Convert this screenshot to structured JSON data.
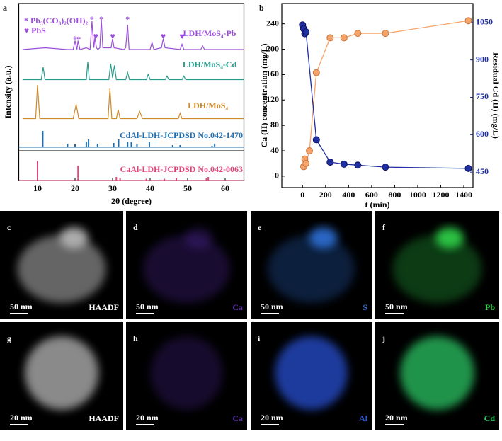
{
  "chart_data": [
    {
      "type": "xrd",
      "panel": "a",
      "x_label": "2θ (degree)",
      "y_label": "Intensity (a.u.)",
      "xlim": [
        5,
        65
      ],
      "xticks": [
        10,
        20,
        30,
        40,
        50,
        60
      ],
      "ylim": [
        0,
        100
      ],
      "series": [
        {
          "name": "LDH/MoS₄-Pb",
          "color": "#9b4fd8",
          "style": "line",
          "x": [
            6,
            12,
            18,
            19.5,
            20,
            20.5,
            20.8,
            21.3,
            23,
            24,
            24.5,
            25,
            25.3,
            25.7,
            26.1,
            26.6,
            27,
            27.4,
            29,
            29.6,
            30,
            30.4,
            33,
            33.5,
            34,
            34.4,
            38,
            40,
            40.5,
            41,
            43,
            43.5,
            44,
            48,
            48.5,
            49,
            53.5,
            54,
            54.5,
            60,
            65
          ],
          "values": [
            74,
            75,
            74,
            74,
            79,
            74,
            79,
            74,
            75,
            74,
            90,
            75,
            81,
            75,
            74,
            75,
            91,
            75,
            75,
            75,
            80,
            75,
            74,
            75,
            88,
            74,
            74,
            74,
            78,
            74,
            75,
            80,
            75,
            74,
            77,
            74,
            74,
            76,
            74,
            74,
            74
          ]
        },
        {
          "name": "LDH/MoS₄-Cd",
          "color": "#2a9a8a",
          "style": "line",
          "x": [
            6,
            11,
            11.5,
            12,
            18,
            23,
            23.4,
            23.8,
            29,
            29.5,
            30,
            30.5,
            31,
            33.5,
            34,
            34.5,
            39,
            39.5,
            40,
            44,
            44.5,
            45,
            48.5,
            49,
            49.5,
            60,
            65
          ],
          "values": [
            57,
            57,
            64,
            57,
            57,
            57,
            67,
            57,
            57,
            66,
            58,
            65,
            57,
            57,
            61,
            57,
            57,
            60,
            57,
            57,
            59,
            57,
            57,
            59,
            57,
            57,
            57
          ]
        },
        {
          "name": "LDH/MoS₄",
          "color": "#d08a2a",
          "style": "line",
          "x": [
            6,
            9.5,
            10,
            10.6,
            19.5,
            20.3,
            21,
            28.8,
            29.3,
            29.8,
            31,
            31.5,
            32,
            36.5,
            37.2,
            38,
            47.5,
            48,
            48.5,
            60,
            65
          ],
          "values": [
            35,
            35,
            54,
            35,
            35,
            43,
            35,
            35,
            52,
            35,
            35,
            40,
            35,
            35,
            39,
            35,
            35,
            38,
            35,
            35,
            35
          ]
        },
        {
          "name": "CdAl-LDH-JCPDSD No.042-1470",
          "color": "#1f6fb0",
          "style": "stick",
          "x": [
            11.4,
            18,
            20,
            23,
            23.6,
            26,
            30.3,
            31.6,
            34,
            35,
            36.5,
            39.8,
            46,
            48,
            56.5,
            57.2
          ],
          "values": [
            28,
            20.8,
            20.4,
            22,
            23.2,
            20.8,
            21.2,
            23.2,
            22,
            21.6,
            20.4,
            21.6,
            20,
            20,
            19.6,
            20.8
          ]
        },
        {
          "name": "CaAl-LDH-JCPDSD No.042-0063",
          "color": "#e0457b",
          "style": "stick",
          "x": [
            10,
            20.8,
            31,
            32,
            39,
            43.8,
            47,
            55,
            55.5
          ],
          "values": [
            11,
            8.4,
            2,
            1.4,
            1,
            1,
            1.2,
            1.2,
            2
          ]
        }
      ],
      "annotations": {
        "color": "#9b4fd8",
        "legend": [
          "* Pb₃(CO₃)₂(OH)₂",
          "♥ PbS"
        ],
        "symbols": [
          "*",
          "*",
          "*",
          "*",
          "*",
          "♥",
          "♥",
          "♥",
          "♥"
        ],
        "x": [
          20,
          21,
          24.5,
          27,
          34,
          25.5,
          30,
          43.5,
          48.5
        ]
      }
    },
    {
      "type": "line",
      "panel": "b",
      "x_label": "t (min)",
      "y_label": "Ca (II) concentration (mg/L)",
      "y2_label": "Residual Cd (II) (mg/L)",
      "xlim": [
        -180,
        1480
      ],
      "xticks": [
        0,
        200,
        400,
        600,
        800,
        1000,
        1200,
        1400
      ],
      "ylim": [
        -18,
        272
      ],
      "yticks": [
        0,
        40,
        80,
        120,
        160,
        200,
        240
      ],
      "y2lim": [
        388,
        1126
      ],
      "y2ticks": [
        450,
        600,
        750,
        900,
        1050
      ],
      "series": [
        {
          "name": "Ca (II)",
          "color": "#f4a46a",
          "x": [
            10,
            20,
            30,
            60,
            120,
            240,
            360,
            480,
            720,
            1440
          ],
          "values": [
            15,
            27,
            20,
            40,
            163,
            218,
            218,
            225,
            225,
            245
          ]
        },
        {
          "name": "Cd (II)",
          "color": "#1f2fa0",
          "axis": "y2",
          "x": [
            0,
            10,
            20,
            30,
            120,
            240,
            360,
            480,
            720,
            1440
          ],
          "values": [
            1040,
            1025,
            1005,
            1012,
            580,
            490,
            482,
            478,
            470,
            465
          ]
        }
      ]
    }
  ],
  "images": [
    {
      "letter": "c",
      "scale_bar": "50 nm",
      "label": "HAADF",
      "color": "#ffffff"
    },
    {
      "letter": "d",
      "scale_bar": "50 nm",
      "label": "Ca",
      "color": "#5a2db0"
    },
    {
      "letter": "e",
      "scale_bar": "50 nm",
      "label": "S",
      "color": "#2e6fd6"
    },
    {
      "letter": "f",
      "scale_bar": "50 nm",
      "label": "Pb",
      "color": "#2fd24a"
    },
    {
      "letter": "g",
      "scale_bar": "20 nm",
      "label": "HAADF",
      "color": "#ffffff"
    },
    {
      "letter": "h",
      "scale_bar": "20 nm",
      "label": "Ca",
      "color": "#5a2db0"
    },
    {
      "letter": "i",
      "scale_bar": "20 nm",
      "label": "Al",
      "color": "#2a55e0"
    },
    {
      "letter": "j",
      "scale_bar": "20 nm",
      "label": "Cd",
      "color": "#2fd26a"
    }
  ]
}
